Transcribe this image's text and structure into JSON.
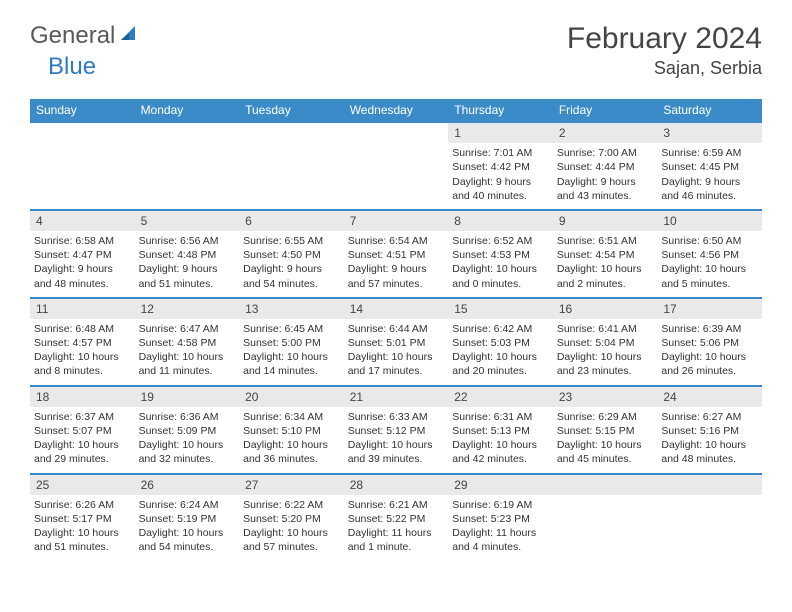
{
  "logo": {
    "general": "General",
    "blue": "Blue"
  },
  "title": "February 2024",
  "location": "Sajan, Serbia",
  "colors": {
    "headerBg": "#3b8bc9",
    "headerText": "#ffffff",
    "dayNumBg": "#e9e9e9",
    "ruleColor": "#3b8bc9",
    "bodyText": "#333333",
    "titleText": "#444444",
    "logoGray": "#595959",
    "logoBlue": "#2f7bbf"
  },
  "dayHeaders": [
    "Sunday",
    "Monday",
    "Tuesday",
    "Wednesday",
    "Thursday",
    "Friday",
    "Saturday"
  ],
  "weeks": [
    [
      null,
      null,
      null,
      null,
      {
        "n": "1",
        "sr": "7:01 AM",
        "ss": "4:42 PM",
        "dl": "9 hours and 40 minutes."
      },
      {
        "n": "2",
        "sr": "7:00 AM",
        "ss": "4:44 PM",
        "dl": "9 hours and 43 minutes."
      },
      {
        "n": "3",
        "sr": "6:59 AM",
        "ss": "4:45 PM",
        "dl": "9 hours and 46 minutes."
      }
    ],
    [
      {
        "n": "4",
        "sr": "6:58 AM",
        "ss": "4:47 PM",
        "dl": "9 hours and 48 minutes."
      },
      {
        "n": "5",
        "sr": "6:56 AM",
        "ss": "4:48 PM",
        "dl": "9 hours and 51 minutes."
      },
      {
        "n": "6",
        "sr": "6:55 AM",
        "ss": "4:50 PM",
        "dl": "9 hours and 54 minutes."
      },
      {
        "n": "7",
        "sr": "6:54 AM",
        "ss": "4:51 PM",
        "dl": "9 hours and 57 minutes."
      },
      {
        "n": "8",
        "sr": "6:52 AM",
        "ss": "4:53 PM",
        "dl": "10 hours and 0 minutes."
      },
      {
        "n": "9",
        "sr": "6:51 AM",
        "ss": "4:54 PM",
        "dl": "10 hours and 2 minutes."
      },
      {
        "n": "10",
        "sr": "6:50 AM",
        "ss": "4:56 PM",
        "dl": "10 hours and 5 minutes."
      }
    ],
    [
      {
        "n": "11",
        "sr": "6:48 AM",
        "ss": "4:57 PM",
        "dl": "10 hours and 8 minutes."
      },
      {
        "n": "12",
        "sr": "6:47 AM",
        "ss": "4:58 PM",
        "dl": "10 hours and 11 minutes."
      },
      {
        "n": "13",
        "sr": "6:45 AM",
        "ss": "5:00 PM",
        "dl": "10 hours and 14 minutes."
      },
      {
        "n": "14",
        "sr": "6:44 AM",
        "ss": "5:01 PM",
        "dl": "10 hours and 17 minutes."
      },
      {
        "n": "15",
        "sr": "6:42 AM",
        "ss": "5:03 PM",
        "dl": "10 hours and 20 minutes."
      },
      {
        "n": "16",
        "sr": "6:41 AM",
        "ss": "5:04 PM",
        "dl": "10 hours and 23 minutes."
      },
      {
        "n": "17",
        "sr": "6:39 AM",
        "ss": "5:06 PM",
        "dl": "10 hours and 26 minutes."
      }
    ],
    [
      {
        "n": "18",
        "sr": "6:37 AM",
        "ss": "5:07 PM",
        "dl": "10 hours and 29 minutes."
      },
      {
        "n": "19",
        "sr": "6:36 AM",
        "ss": "5:09 PM",
        "dl": "10 hours and 32 minutes."
      },
      {
        "n": "20",
        "sr": "6:34 AM",
        "ss": "5:10 PM",
        "dl": "10 hours and 36 minutes."
      },
      {
        "n": "21",
        "sr": "6:33 AM",
        "ss": "5:12 PM",
        "dl": "10 hours and 39 minutes."
      },
      {
        "n": "22",
        "sr": "6:31 AM",
        "ss": "5:13 PM",
        "dl": "10 hours and 42 minutes."
      },
      {
        "n": "23",
        "sr": "6:29 AM",
        "ss": "5:15 PM",
        "dl": "10 hours and 45 minutes."
      },
      {
        "n": "24",
        "sr": "6:27 AM",
        "ss": "5:16 PM",
        "dl": "10 hours and 48 minutes."
      }
    ],
    [
      {
        "n": "25",
        "sr": "6:26 AM",
        "ss": "5:17 PM",
        "dl": "10 hours and 51 minutes."
      },
      {
        "n": "26",
        "sr": "6:24 AM",
        "ss": "5:19 PM",
        "dl": "10 hours and 54 minutes."
      },
      {
        "n": "27",
        "sr": "6:22 AM",
        "ss": "5:20 PM",
        "dl": "10 hours and 57 minutes."
      },
      {
        "n": "28",
        "sr": "6:21 AM",
        "ss": "5:22 PM",
        "dl": "11 hours and 1 minute."
      },
      {
        "n": "29",
        "sr": "6:19 AM",
        "ss": "5:23 PM",
        "dl": "11 hours and 4 minutes."
      },
      null,
      null
    ]
  ],
  "labels": {
    "sunrise": "Sunrise:",
    "sunset": "Sunset:",
    "daylight": "Daylight:"
  }
}
